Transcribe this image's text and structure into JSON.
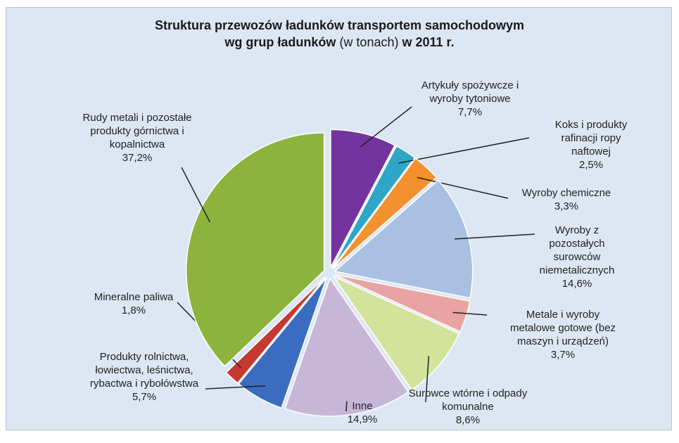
{
  "chart_data": {
    "type": "pie",
    "title": "Struktura przewozów ładunków transportem samochodowym",
    "title_line2": "wg grup ładunków",
    "title_note": "(w tonach)",
    "title_end": "w 2011 r.",
    "categories": [
      "Artykuły spożywcze i wyroby tytoniowe",
      "Koks i produkty rafinacji ropy naftowej",
      "Wyroby chemiczne",
      "Wyroby z pozostałych surowców niemetalicznych",
      "Metale i wyroby metalowe gotowe (bez maszyn i urządzeń)",
      "Surowce wtórne i odpady komunalne",
      "Inne",
      "Produkty rolnictwa, łowiectwa, leśnictwa, rybactwa i rybołówstwa",
      "Mineralne paliwa",
      "Rudy metali i pozostałe produkty górnictwa i kopalnictwa"
    ],
    "values": [
      7.7,
      2.5,
      3.3,
      14.6,
      3.7,
      8.6,
      14.9,
      5.7,
      1.8,
      37.2
    ],
    "value_labels": [
      "7,7%",
      "2,5%",
      "3,3%",
      "14,6%",
      "3,7%",
      "8,6%",
      "14,9%",
      "5,7%",
      "1,8%",
      "37,2%"
    ],
    "colors": [
      "#7434a0",
      "#2ea7c6",
      "#f4912f",
      "#a9c0e2",
      "#eaa3a3",
      "#d4e39c",
      "#c6b7d9",
      "#3b6cbf",
      "#c43a30",
      "#8cb43c"
    ]
  }
}
